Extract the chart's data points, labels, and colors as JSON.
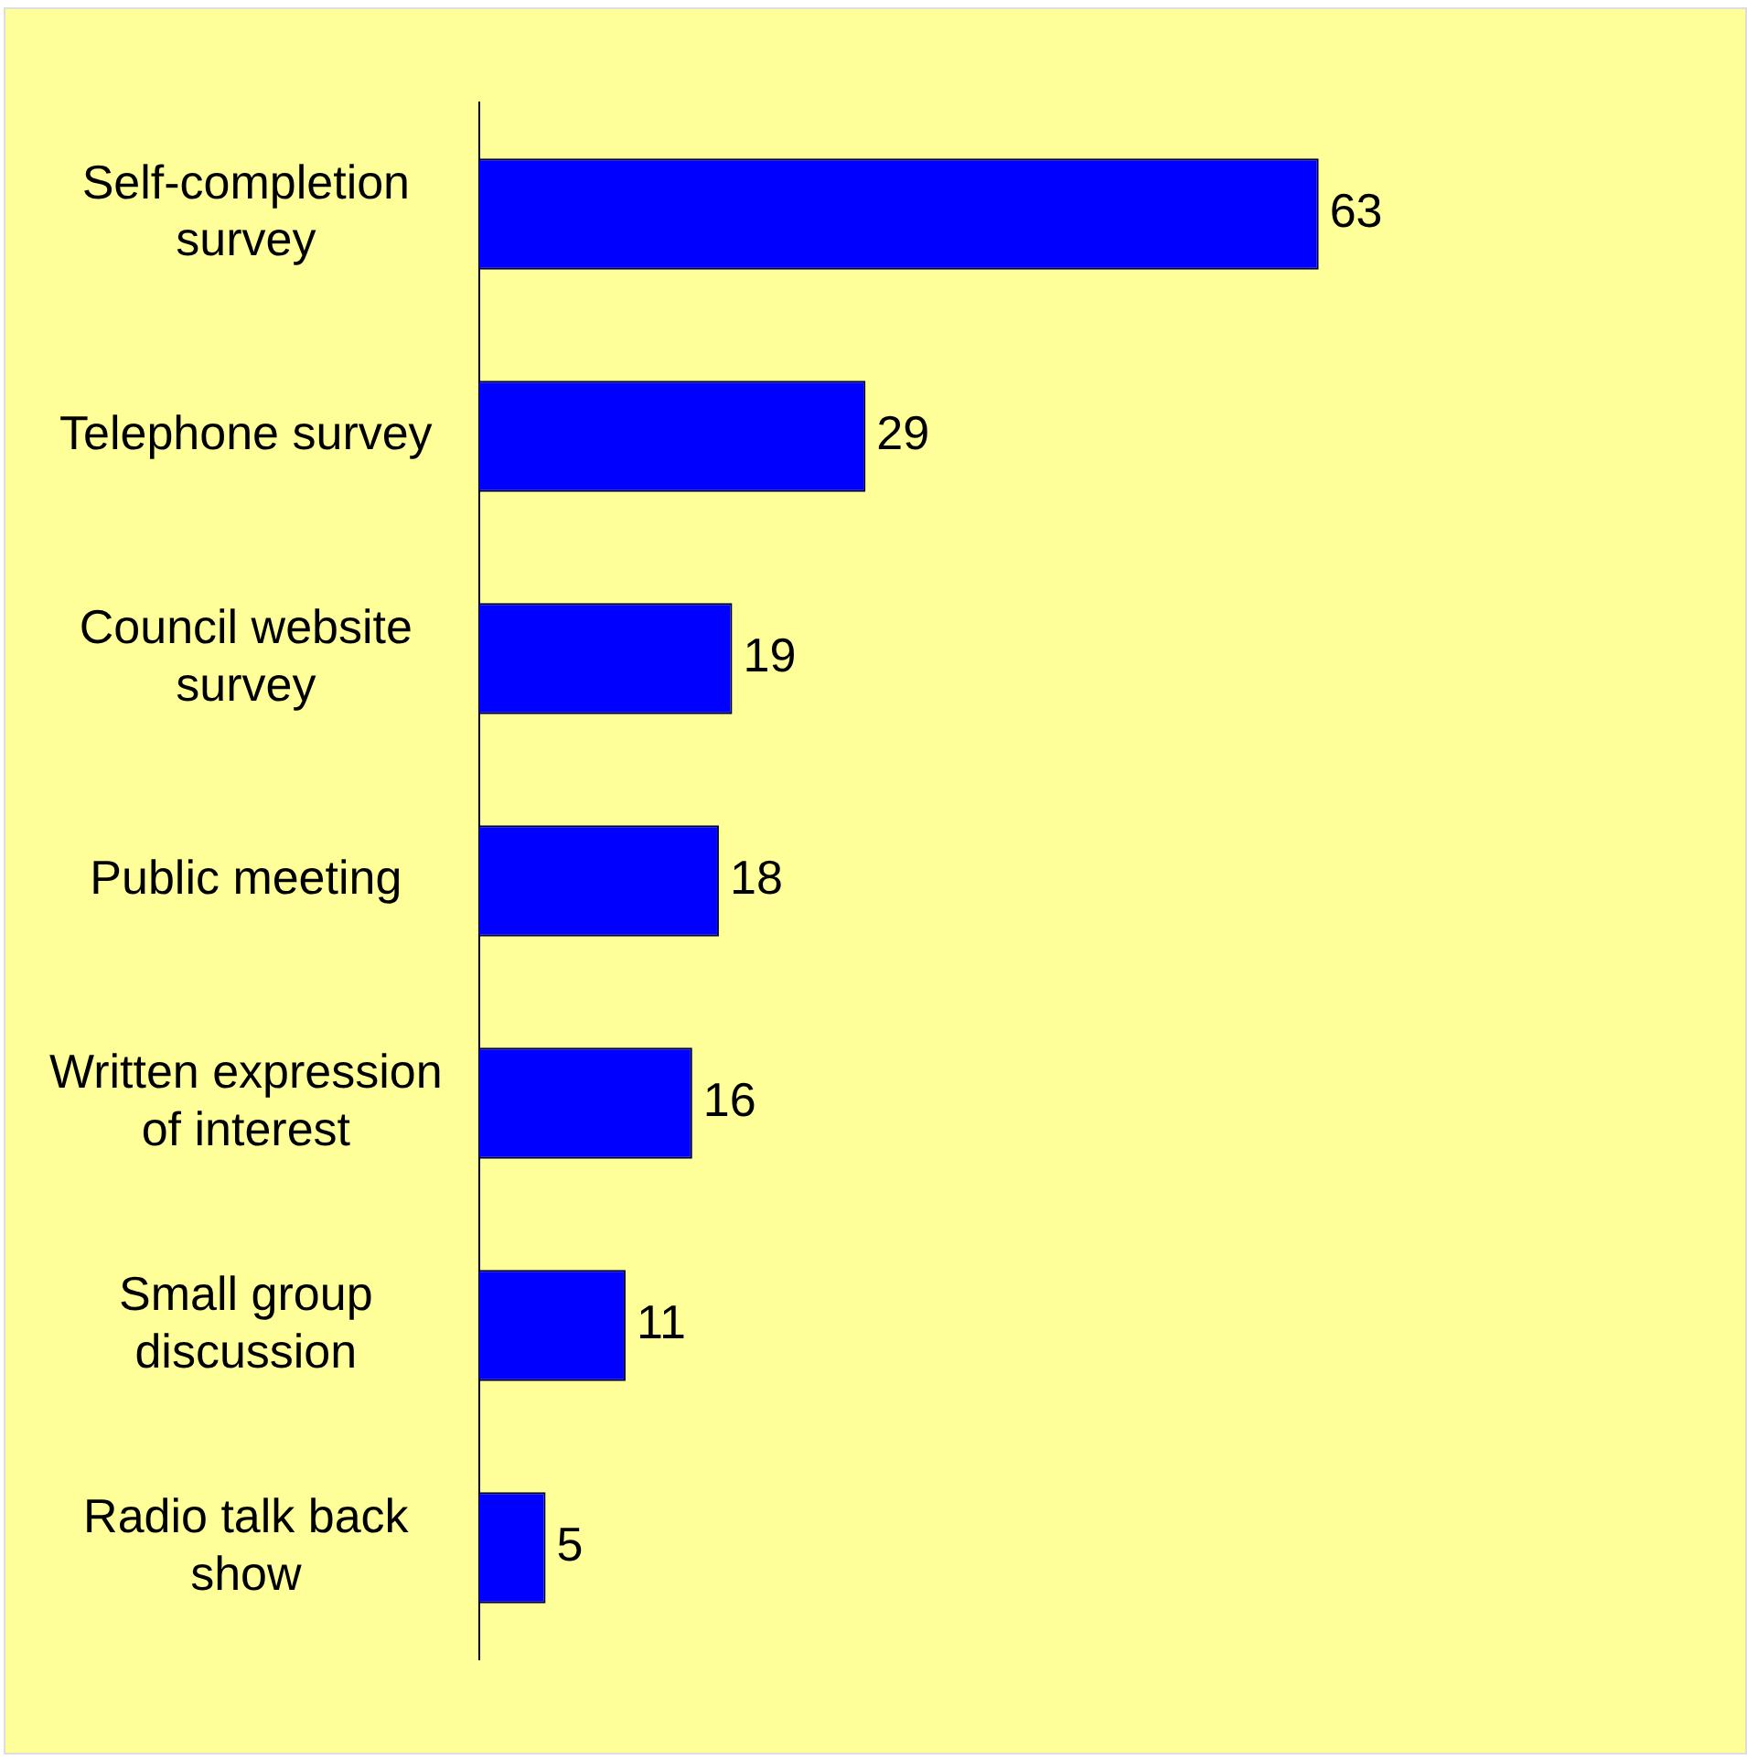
{
  "chart_data": {
    "type": "bar",
    "orientation": "horizontal",
    "categories": [
      "Self-completion survey",
      "Telephone survey",
      "Council website survey",
      "Public meeting",
      "Written expression of interest",
      "Small group discussion",
      "Radio talk back show"
    ],
    "values": [
      63,
      29,
      19,
      18,
      16,
      11,
      5
    ],
    "color": "#0000ff",
    "xlim": [
      0,
      95
    ],
    "data_labels": true,
    "tick_labels": "y"
  }
}
